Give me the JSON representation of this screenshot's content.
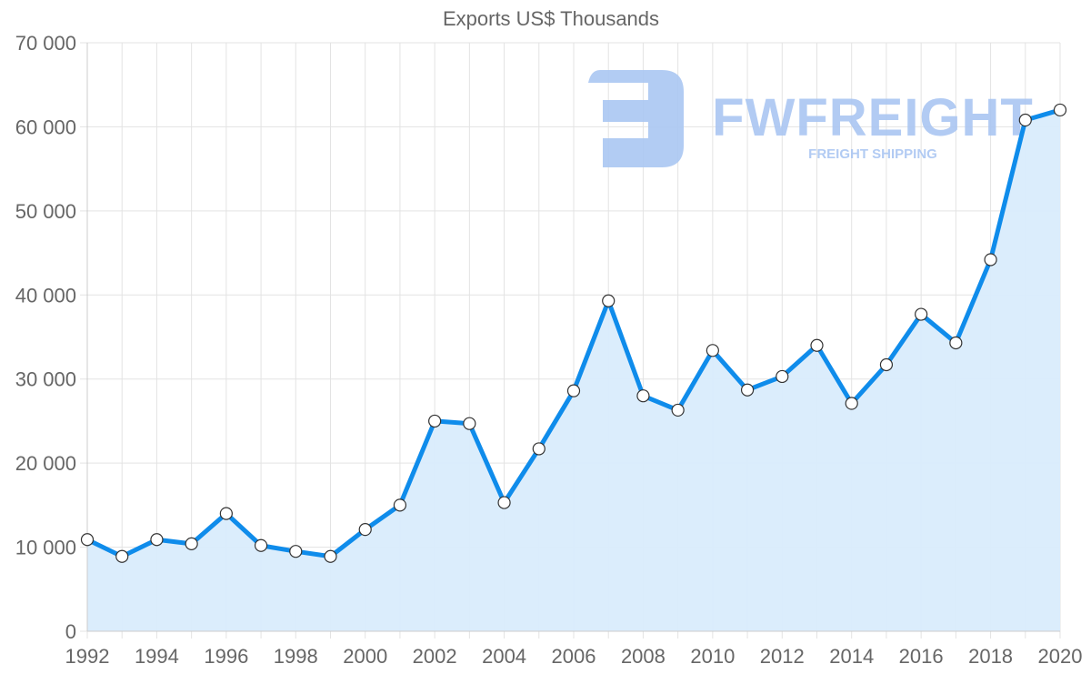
{
  "chart_data": {
    "type": "area",
    "title": "Exports US$ Thousands",
    "xlabel": "",
    "ylabel": "",
    "x": [
      1992,
      1993,
      1994,
      1995,
      1996,
      1997,
      1998,
      1999,
      2000,
      2001,
      2002,
      2003,
      2004,
      2005,
      2006,
      2007,
      2008,
      2009,
      2010,
      2011,
      2012,
      2013,
      2014,
      2015,
      2016,
      2017,
      2018,
      2019,
      2020
    ],
    "series": [
      {
        "name": "Exports US$ Thousands",
        "values": [
          10900,
          8900,
          10900,
          10400,
          14000,
          10200,
          9500,
          8900,
          12100,
          15000,
          25000,
          24700,
          15300,
          21700,
          28600,
          39300,
          28000,
          26300,
          33400,
          28700,
          30300,
          34000,
          27100,
          31700,
          37700,
          34300,
          44200,
          60800,
          62000
        ]
      }
    ],
    "x_tick_labels": [
      "1992",
      "1994",
      "1996",
      "1998",
      "2000",
      "2002",
      "2004",
      "2006",
      "2008",
      "2010",
      "2012",
      "2014",
      "2016",
      "2018",
      "2020"
    ],
    "y_tick_labels": [
      "0",
      "10 000",
      "20 000",
      "30 000",
      "40 000",
      "50 000",
      "60 000",
      "70 000"
    ],
    "ylim": [
      0,
      70000
    ],
    "xlim": [
      1992,
      2020
    ],
    "grid": true,
    "legend": "none",
    "colors": {
      "line": "#0f8ceb",
      "fill": "#d9ecfc",
      "marker_fill": "#ffffff",
      "marker_stroke": "#333333",
      "grid": "#e3e3e3",
      "axis_text": "#666666"
    }
  },
  "watermark": {
    "brand": "FWFREIGHT",
    "tagline": "FREIGHT SHIPPING",
    "color": "#aac6f2"
  }
}
